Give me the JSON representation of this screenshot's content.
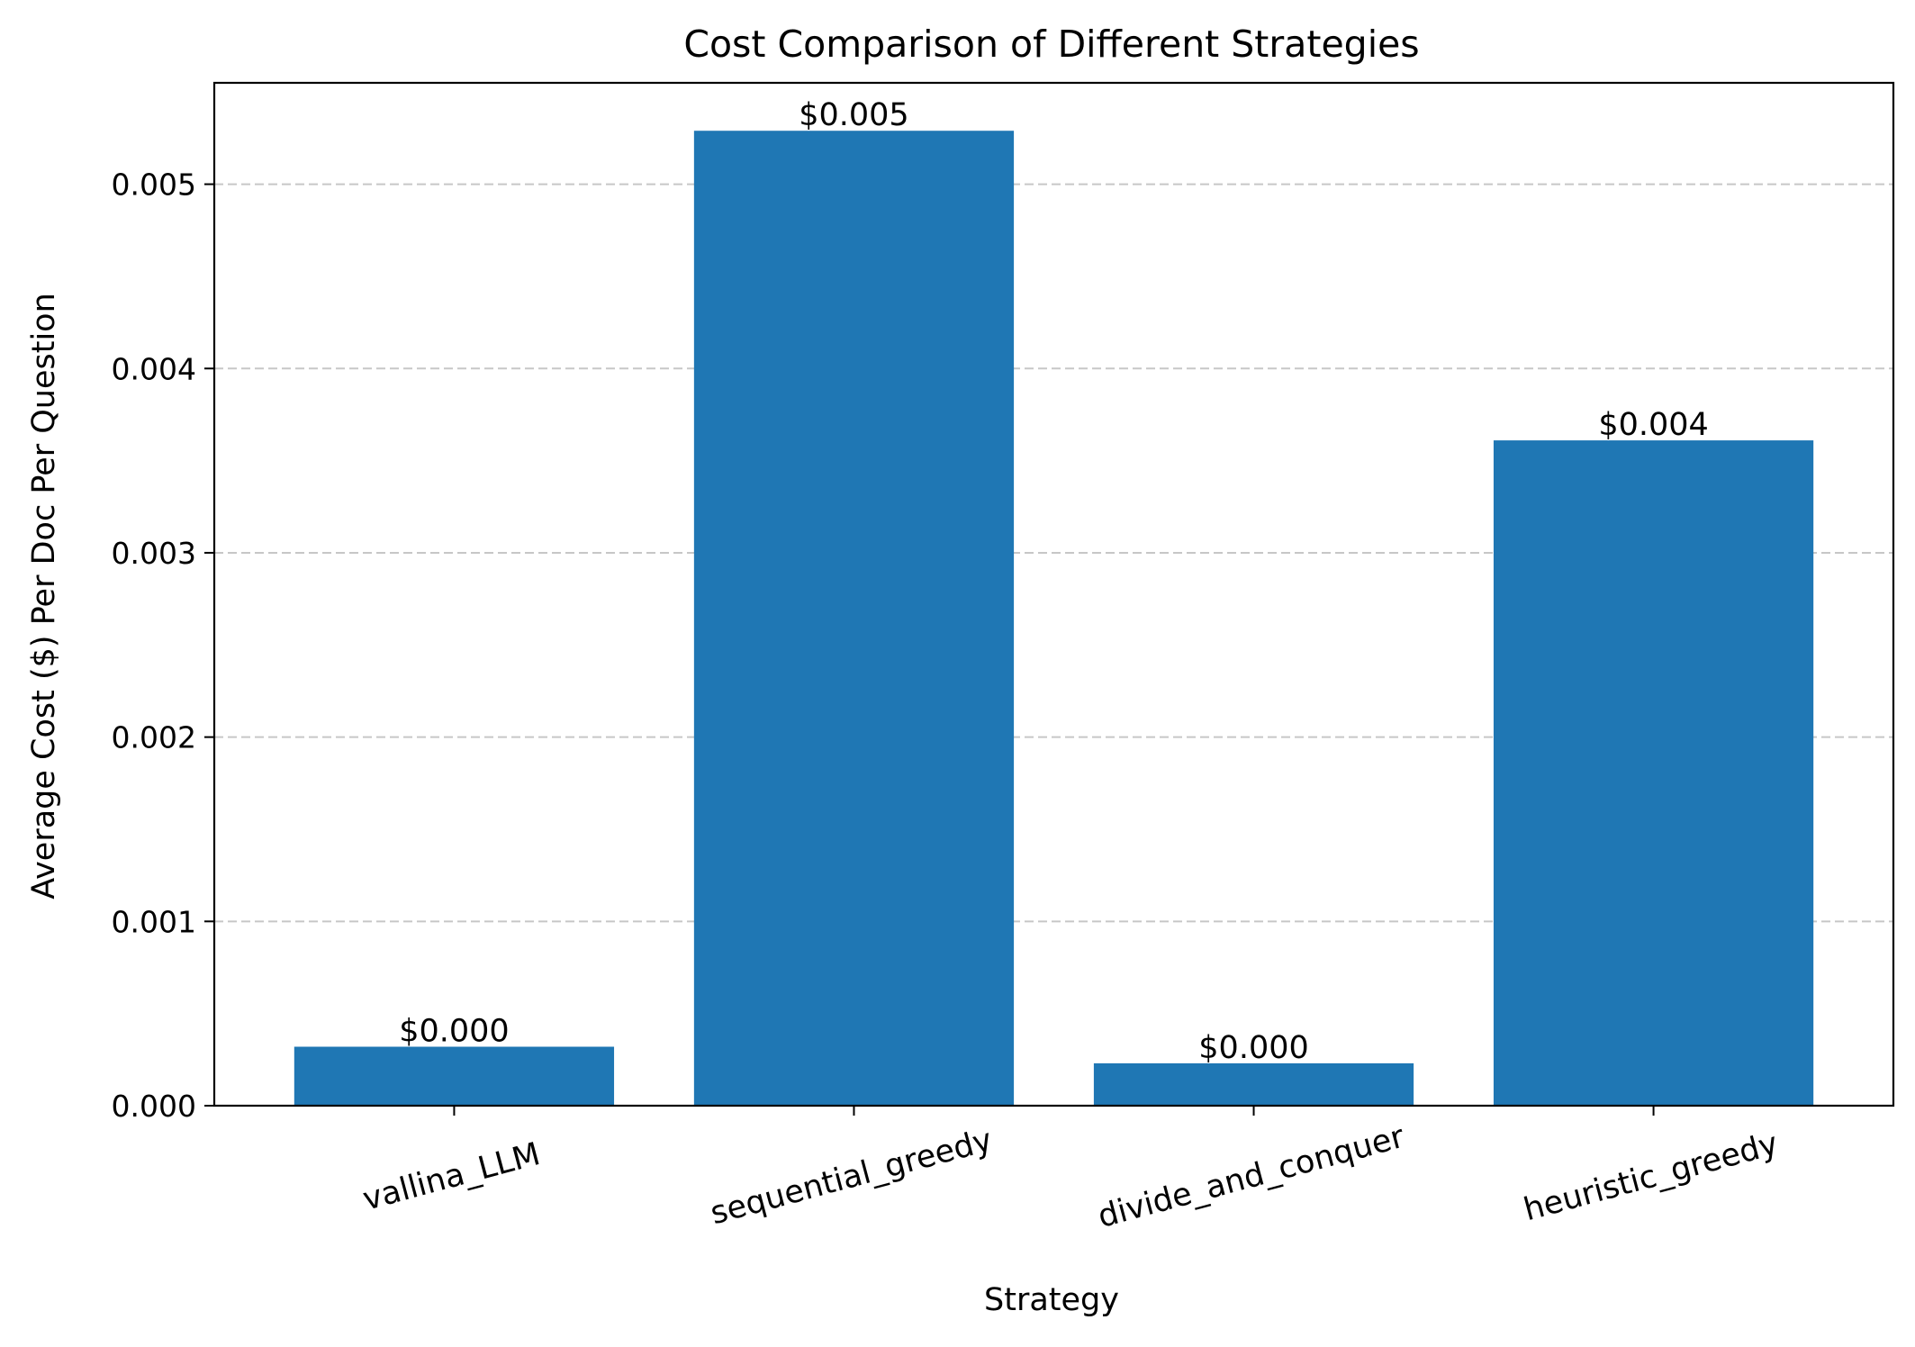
{
  "chart_data": {
    "type": "bar",
    "title": "Cost Comparison of Different Strategies",
    "xlabel": "Strategy",
    "ylabel": "Average Cost ($) Per Doc Per Question",
    "categories": [
      "vallina_LLM",
      "sequential_greedy",
      "divide_and_conquer",
      "heuristic_greedy"
    ],
    "values": [
      0.00032,
      0.00529,
      0.00023,
      0.00361
    ],
    "data_labels": [
      "$0.000",
      "$0.005",
      "$0.000",
      "$0.004"
    ],
    "ylim": [
      0,
      0.00555
    ],
    "yticks": [
      0.0,
      0.001,
      0.002,
      0.003,
      0.004,
      0.005
    ],
    "ytick_labels": [
      "0.000",
      "0.001",
      "0.002",
      "0.003",
      "0.004",
      "0.005"
    ],
    "xtick_rotation_deg": 15,
    "grid": "y-axis dashed",
    "legend": "none",
    "bar_color": "#1f77b4",
    "grid_color": "#c7c7c7"
  }
}
